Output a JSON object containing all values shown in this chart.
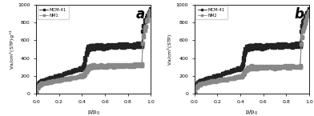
{
  "ylabel_a": "Va/cm$^3$(STP)g$^{-1}$",
  "ylabel_b": "Va/cm$^3$(STP)",
  "xlabel": "p/p$_0$",
  "ylim": [
    0,
    1000
  ],
  "xlim": [
    0.0,
    1.0
  ],
  "yticks": [
    0,
    200,
    400,
    600,
    800,
    1000
  ],
  "xticks": [
    0.0,
    0.2,
    0.4,
    0.6,
    0.8,
    1.0
  ],
  "label_a": "a",
  "label_b": "b",
  "legend_a": [
    "MCM-41",
    "NM1"
  ],
  "legend_b": [
    "MCM-41",
    "NM2"
  ],
  "color_mcm41": "#222222",
  "color_nm": "#888888",
  "marker": "s",
  "markersize": 2.2,
  "linewidth": 0.6
}
